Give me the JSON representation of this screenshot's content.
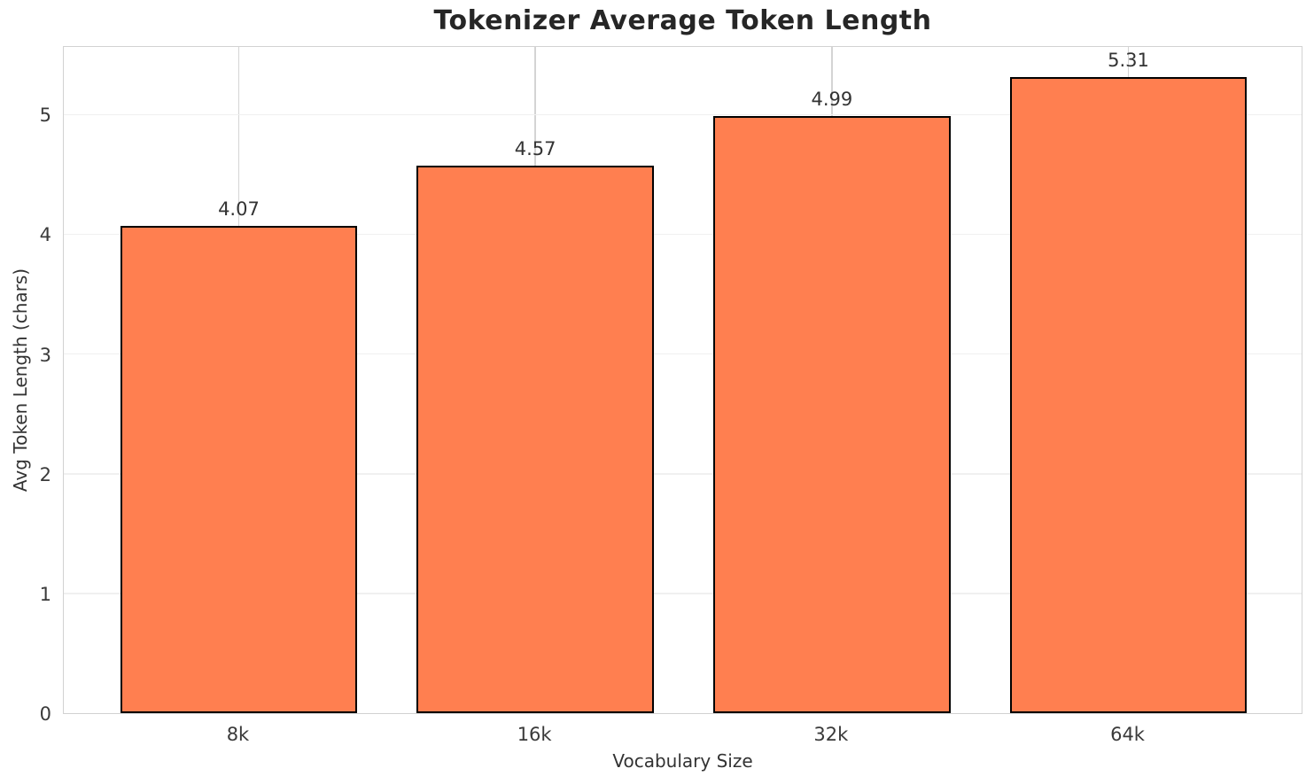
{
  "chart_data": {
    "type": "bar",
    "title": "Tokenizer Average Token Length",
    "xlabel": "Vocabulary Size",
    "ylabel": "Avg Token Length (chars)",
    "categories": [
      "8k",
      "16k",
      "32k",
      "64k"
    ],
    "values": [
      4.07,
      4.57,
      4.99,
      5.31
    ],
    "value_labels": [
      "4.07",
      "4.57",
      "4.99",
      "5.31"
    ],
    "ylim": [
      0,
      5.58
    ],
    "yticks": [
      0,
      1,
      2,
      3,
      4,
      5
    ],
    "grid": true,
    "legend": "none",
    "bar_color": "#FF7F50",
    "bar_edge_color": "#000000",
    "background_color": "#FFFFFF",
    "gridline_color_horizontal": "#F0F0F0",
    "gridline_color_vertical": "#D4D4D4",
    "text_color": "#333333"
  }
}
